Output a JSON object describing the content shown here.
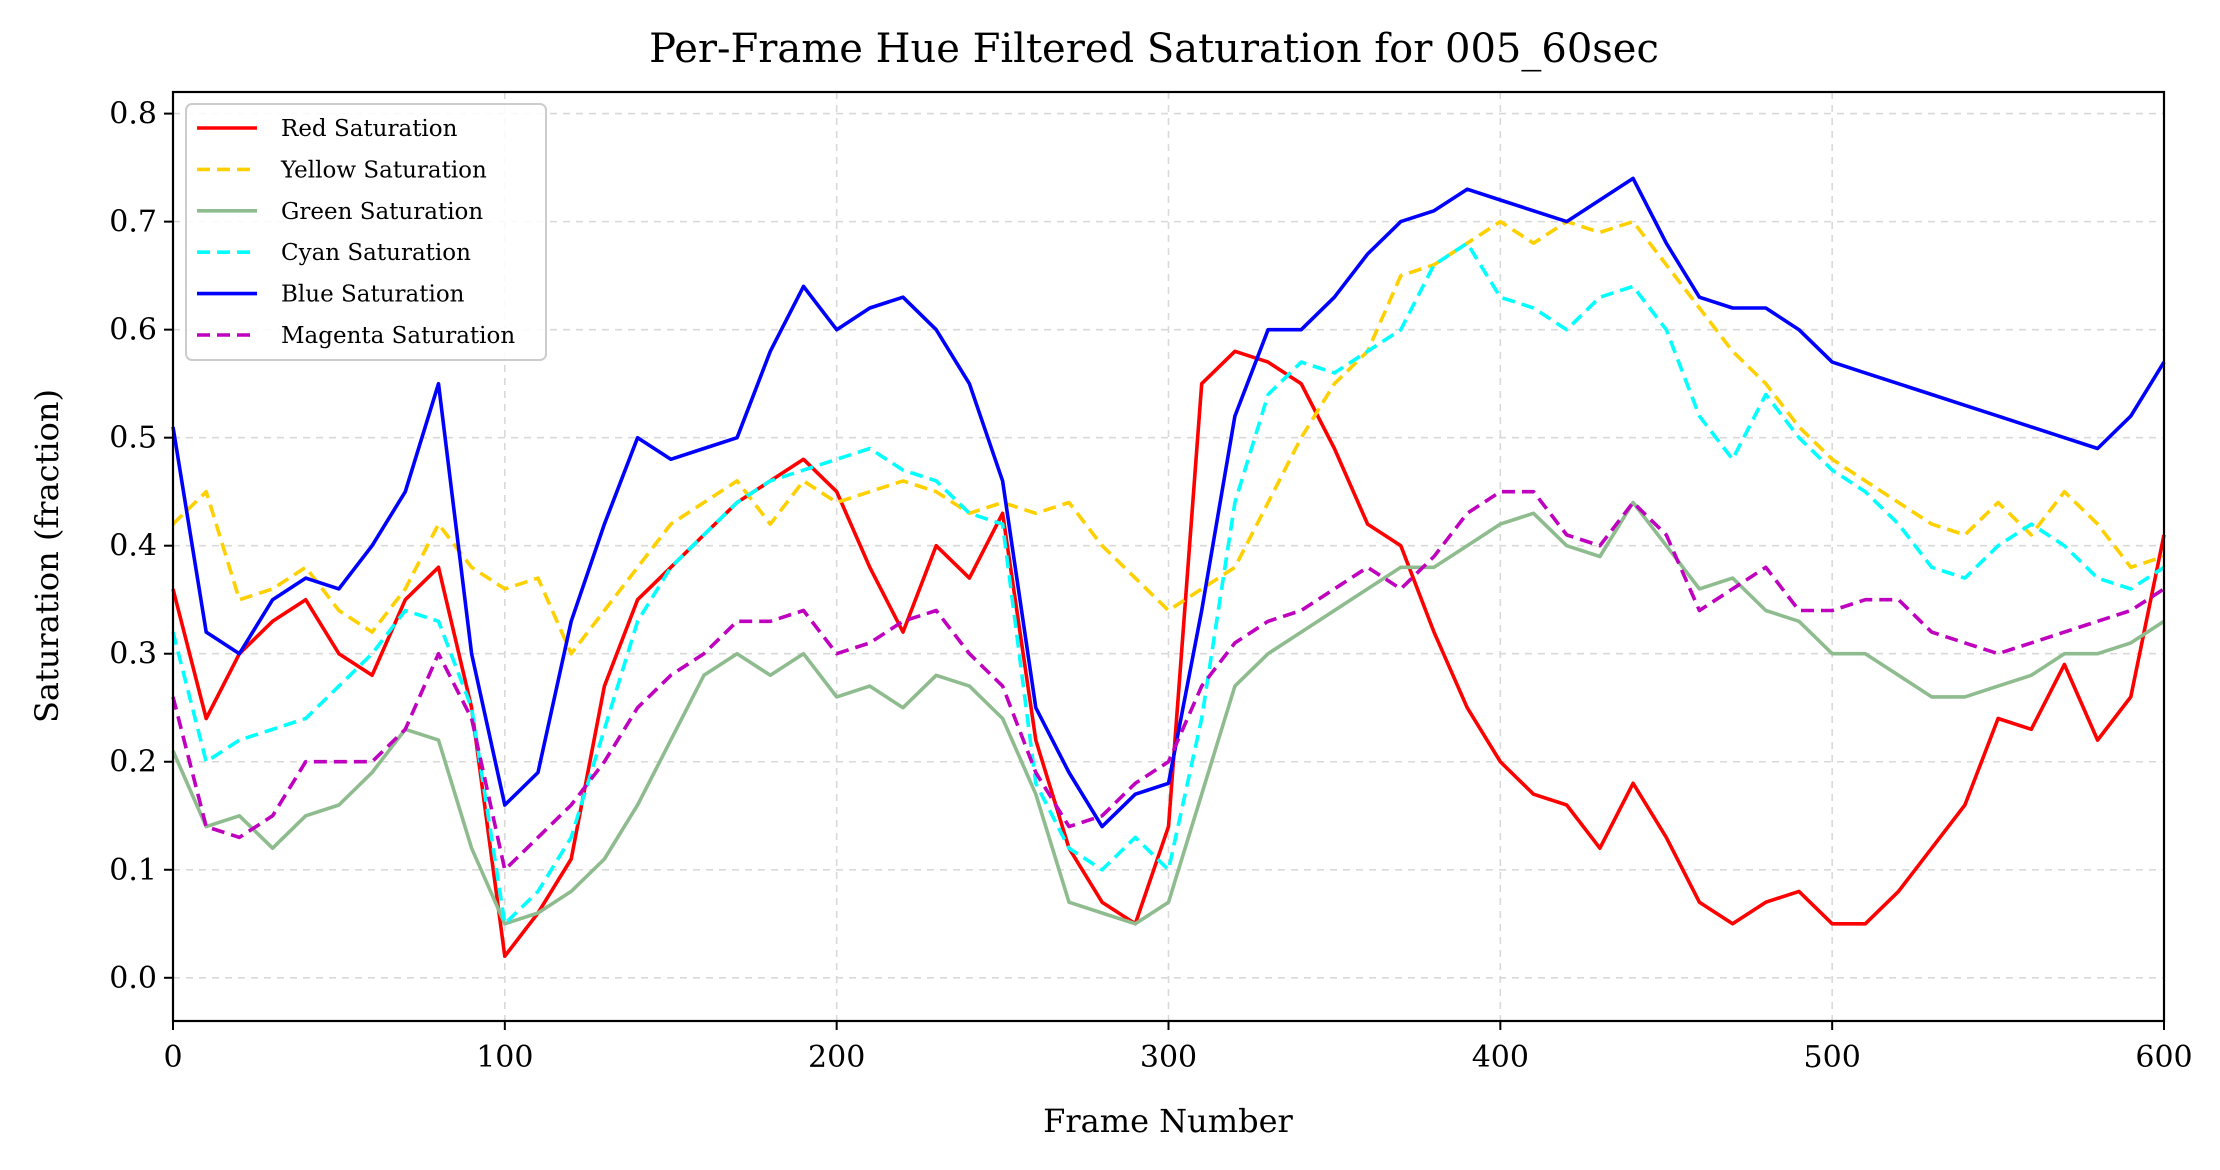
{
  "chart_data": {
    "type": "line",
    "title": "Per-Frame Hue Filtered Saturation for 005_60sec",
    "xlabel": "Frame Number",
    "ylabel": "Saturation (fraction)",
    "xlim": [
      0,
      600
    ],
    "ylim": [
      -0.04,
      0.82
    ],
    "xticks": [
      0,
      100,
      200,
      300,
      400,
      500,
      600
    ],
    "xtick_labels": [
      "0",
      "100",
      "200",
      "300",
      "400",
      "500",
      "600"
    ],
    "yticks": [
      0.0,
      0.1,
      0.2,
      0.3,
      0.4,
      0.5,
      0.6,
      0.7,
      0.8
    ],
    "ytick_labels": [
      "0.0",
      "0.1",
      "0.2",
      "0.3",
      "0.4",
      "0.5",
      "0.6",
      "0.7",
      "0.8"
    ],
    "grid": true,
    "legend_position": "top-left",
    "x": [
      0,
      10,
      20,
      30,
      40,
      50,
      60,
      70,
      80,
      90,
      100,
      110,
      120,
      130,
      140,
      150,
      160,
      170,
      180,
      190,
      200,
      210,
      220,
      230,
      240,
      250,
      260,
      270,
      280,
      290,
      300,
      310,
      320,
      330,
      340,
      350,
      360,
      370,
      380,
      390,
      400,
      410,
      420,
      430,
      440,
      450,
      460,
      470,
      480,
      490,
      500,
      510,
      520,
      530,
      540,
      550,
      560,
      570,
      580,
      590,
      600
    ],
    "series": [
      {
        "name": "Red Saturation",
        "color": "#ff0000",
        "dash": "solid",
        "values": [
          0.36,
          0.24,
          0.3,
          0.33,
          0.35,
          0.3,
          0.28,
          0.35,
          0.38,
          0.25,
          0.02,
          0.06,
          0.11,
          0.27,
          0.35,
          0.38,
          0.41,
          0.44,
          0.46,
          0.48,
          0.45,
          0.38,
          0.32,
          0.4,
          0.37,
          0.43,
          0.22,
          0.12,
          0.07,
          0.05,
          0.14,
          0.55,
          0.58,
          0.57,
          0.55,
          0.49,
          0.42,
          0.4,
          0.32,
          0.25,
          0.2,
          0.17,
          0.16,
          0.12,
          0.18,
          0.13,
          0.07,
          0.05,
          0.07,
          0.08,
          0.05,
          0.05,
          0.08,
          0.12,
          0.16,
          0.24,
          0.23,
          0.29,
          0.22,
          0.26,
          0.41
        ]
      },
      {
        "name": "Yellow Saturation",
        "color": "#ffd000",
        "dash": "dashed",
        "values": [
          0.42,
          0.45,
          0.35,
          0.36,
          0.38,
          0.34,
          0.32,
          0.36,
          0.42,
          0.38,
          0.36,
          0.37,
          0.3,
          0.34,
          0.38,
          0.42,
          0.44,
          0.46,
          0.42,
          0.46,
          0.44,
          0.45,
          0.46,
          0.45,
          0.43,
          0.44,
          0.43,
          0.44,
          0.4,
          0.37,
          0.34,
          0.36,
          0.38,
          0.44,
          0.5,
          0.55,
          0.58,
          0.65,
          0.66,
          0.68,
          0.7,
          0.68,
          0.7,
          0.69,
          0.7,
          0.66,
          0.62,
          0.58,
          0.55,
          0.51,
          0.48,
          0.46,
          0.44,
          0.42,
          0.41,
          0.44,
          0.41,
          0.45,
          0.42,
          0.38,
          0.39
        ]
      },
      {
        "name": "Green Saturation",
        "color": "#8fbc8f",
        "dash": "solid",
        "values": [
          0.21,
          0.14,
          0.15,
          0.12,
          0.15,
          0.16,
          0.19,
          0.23,
          0.22,
          0.12,
          0.05,
          0.06,
          0.08,
          0.11,
          0.16,
          0.22,
          0.28,
          0.3,
          0.28,
          0.3,
          0.26,
          0.27,
          0.25,
          0.28,
          0.27,
          0.24,
          0.17,
          0.07,
          0.06,
          0.05,
          0.07,
          0.17,
          0.27,
          0.3,
          0.32,
          0.34,
          0.36,
          0.38,
          0.38,
          0.4,
          0.42,
          0.43,
          0.4,
          0.39,
          0.44,
          0.4,
          0.36,
          0.37,
          0.34,
          0.33,
          0.3,
          0.3,
          0.28,
          0.26,
          0.26,
          0.27,
          0.28,
          0.3,
          0.3,
          0.31,
          0.33
        ]
      },
      {
        "name": "Cyan Saturation",
        "color": "#00ffff",
        "dash": "dashed",
        "values": [
          0.32,
          0.2,
          0.22,
          0.23,
          0.24,
          0.27,
          0.3,
          0.34,
          0.33,
          0.25,
          0.05,
          0.08,
          0.13,
          0.23,
          0.33,
          0.38,
          0.41,
          0.44,
          0.46,
          0.47,
          0.48,
          0.49,
          0.47,
          0.46,
          0.43,
          0.42,
          0.18,
          0.12,
          0.1,
          0.13,
          0.1,
          0.24,
          0.44,
          0.54,
          0.57,
          0.56,
          0.58,
          0.6,
          0.66,
          0.68,
          0.63,
          0.62,
          0.6,
          0.63,
          0.64,
          0.6,
          0.52,
          0.48,
          0.54,
          0.5,
          0.47,
          0.45,
          0.42,
          0.38,
          0.37,
          0.4,
          0.42,
          0.4,
          0.37,
          0.36,
          0.38
        ]
      },
      {
        "name": "Blue Saturation",
        "color": "#0000ff",
        "dash": "solid",
        "values": [
          0.51,
          0.32,
          0.3,
          0.35,
          0.37,
          0.36,
          0.4,
          0.45,
          0.55,
          0.3,
          0.16,
          0.19,
          0.33,
          0.42,
          0.5,
          0.48,
          0.49,
          0.5,
          0.58,
          0.64,
          0.6,
          0.62,
          0.63,
          0.6,
          0.55,
          0.46,
          0.25,
          0.19,
          0.14,
          0.17,
          0.18,
          0.34,
          0.52,
          0.6,
          0.6,
          0.63,
          0.67,
          0.7,
          0.71,
          0.73,
          0.72,
          0.71,
          0.7,
          0.72,
          0.74,
          0.68,
          0.63,
          0.62,
          0.62,
          0.6,
          0.57,
          0.56,
          0.55,
          0.54,
          0.53,
          0.52,
          0.51,
          0.5,
          0.49,
          0.52,
          0.57
        ]
      },
      {
        "name": "Magenta Saturation",
        "color": "#bf00bf",
        "dash": "dashed",
        "values": [
          0.26,
          0.14,
          0.13,
          0.15,
          0.2,
          0.2,
          0.2,
          0.23,
          0.3,
          0.24,
          0.1,
          0.13,
          0.16,
          0.2,
          0.25,
          0.28,
          0.3,
          0.33,
          0.33,
          0.34,
          0.3,
          0.31,
          0.33,
          0.34,
          0.3,
          0.27,
          0.19,
          0.14,
          0.15,
          0.18,
          0.2,
          0.27,
          0.31,
          0.33,
          0.34,
          0.36,
          0.38,
          0.36,
          0.39,
          0.43,
          0.45,
          0.45,
          0.41,
          0.4,
          0.44,
          0.41,
          0.34,
          0.36,
          0.38,
          0.34,
          0.34,
          0.35,
          0.35,
          0.32,
          0.31,
          0.3,
          0.31,
          0.32,
          0.33,
          0.34,
          0.36
        ]
      }
    ]
  }
}
